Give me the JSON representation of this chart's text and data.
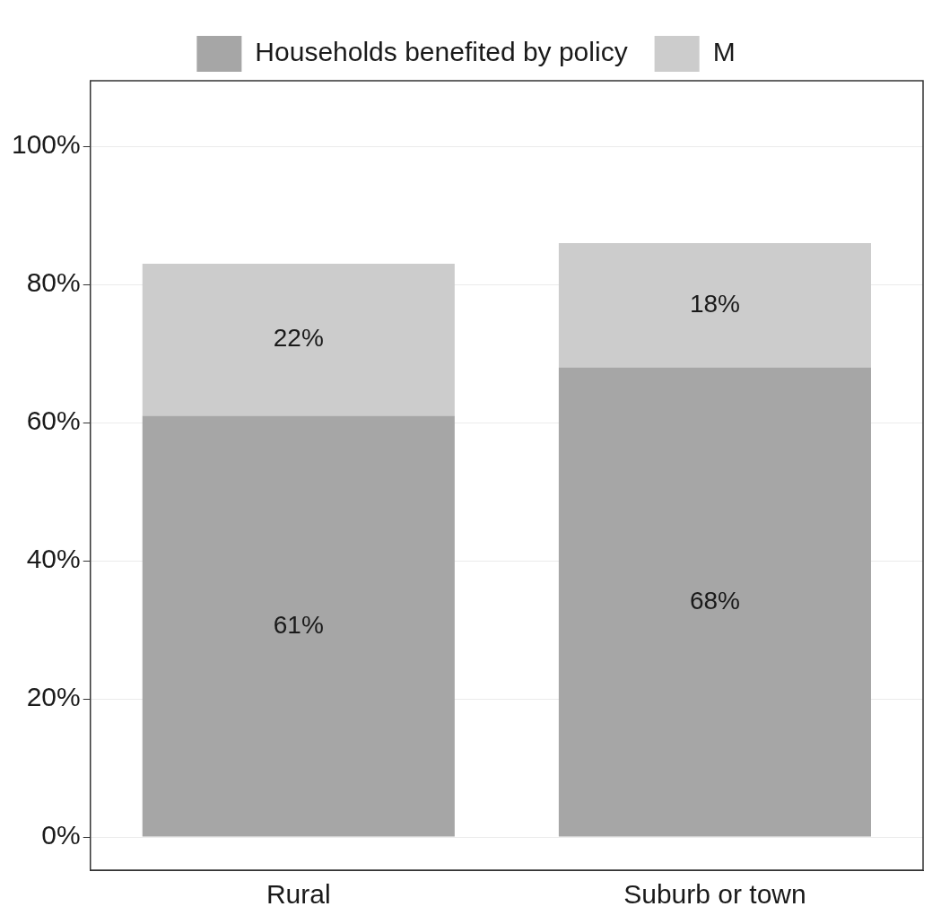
{
  "chart_data": {
    "type": "bar",
    "stacked": true,
    "categories": [
      "Rural",
      "Suburb or town"
    ],
    "series": [
      {
        "name": "Households benefited by policy",
        "color": "#a6a6a6",
        "values": [
          61,
          68
        ]
      },
      {
        "name": "M",
        "color": "#cccccc",
        "values": [
          22,
          18
        ]
      }
    ],
    "ylim": [
      -4.8,
      109.5
    ],
    "yticks": [
      {
        "value": 0,
        "label": "0%"
      },
      {
        "value": 20,
        "label": "20%"
      },
      {
        "value": 40,
        "label": "40%"
      },
      {
        "value": 60,
        "label": "60%"
      },
      {
        "value": 80,
        "label": "80%"
      },
      {
        "value": 100,
        "label": "100%"
      }
    ],
    "value_labels": [
      [
        "61%",
        "68%"
      ],
      [
        "22%",
        "18%"
      ]
    ],
    "grid": "y",
    "legend": "top"
  }
}
